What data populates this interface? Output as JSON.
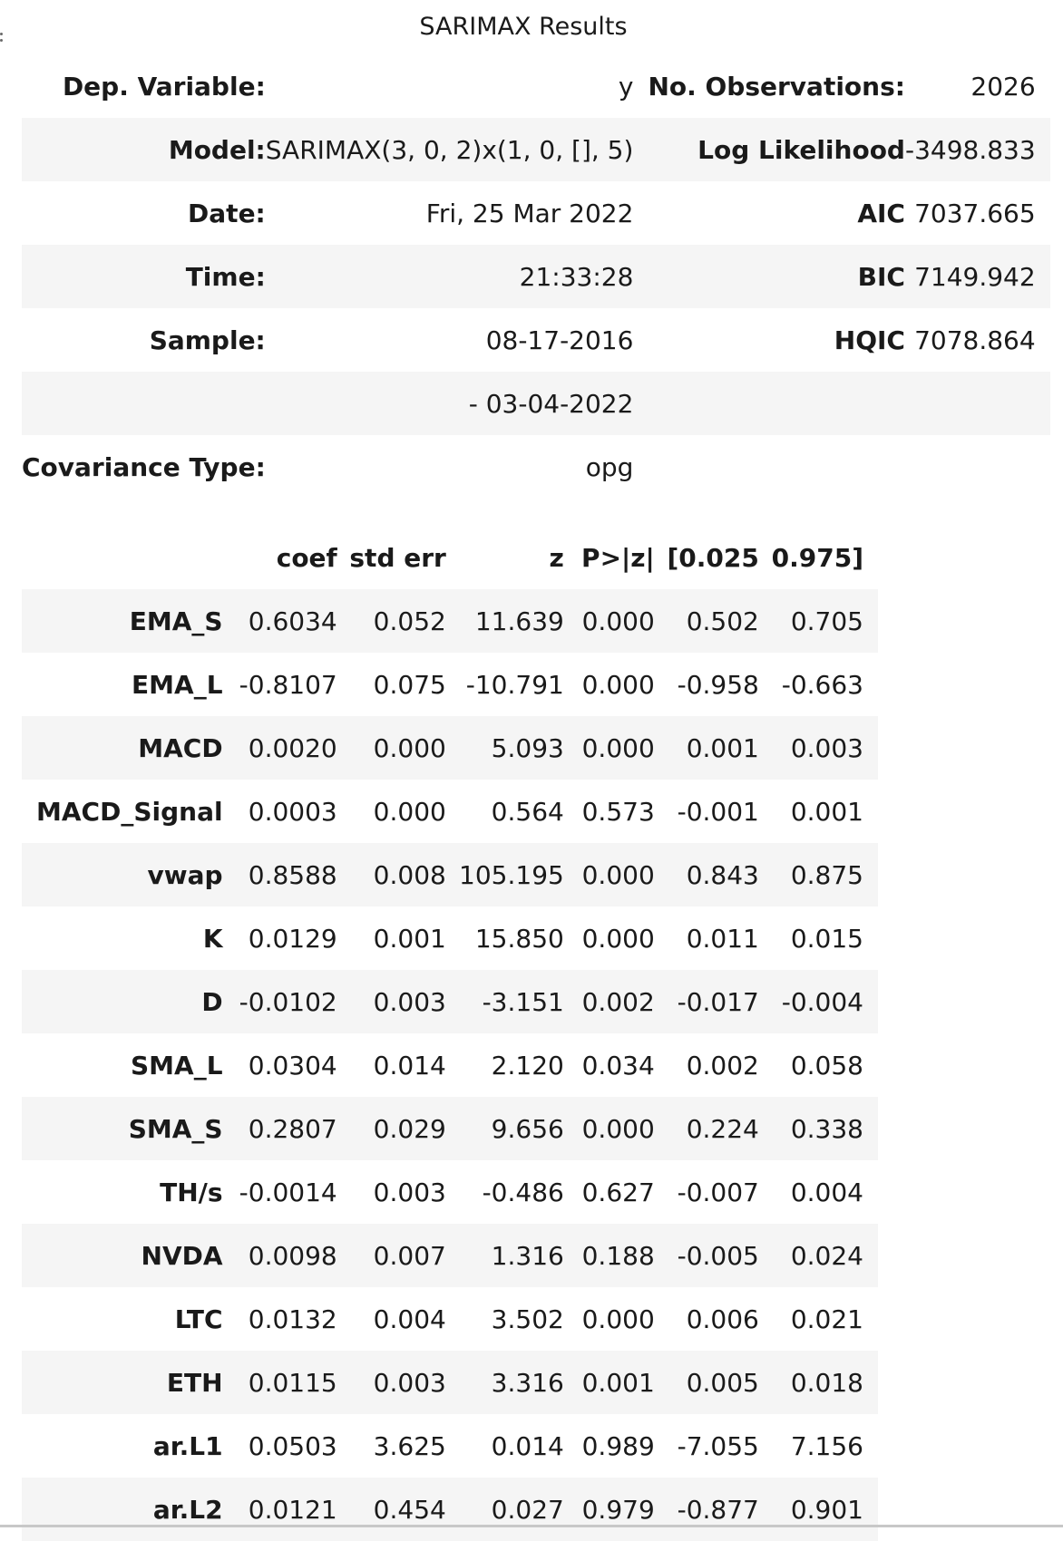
{
  "title": "SARIMAX Results",
  "summary": {
    "rows": [
      {
        "l1": "Dep. Variable:",
        "v1": "y",
        "l2": "No. Observations:",
        "v2": "2026"
      },
      {
        "l1": "Model:",
        "v1": "SARIMAX(3, 0, 2)x(1, 0, [], 5)",
        "l2": "Log Likelihood",
        "v2": "-3498.833"
      },
      {
        "l1": "Date:",
        "v1": "Fri, 25 Mar 2022",
        "l2": "AIC",
        "v2": "7037.665"
      },
      {
        "l1": "Time:",
        "v1": "21:33:28",
        "l2": "BIC",
        "v2": "7149.942"
      },
      {
        "l1": "Sample:",
        "v1": "08-17-2016",
        "l2": "HQIC",
        "v2": "7078.864"
      },
      {
        "l1": "",
        "v1": "- 03-04-2022",
        "l2": "",
        "v2": ""
      },
      {
        "l1": "Covariance Type:",
        "v1": "opg",
        "l2": "",
        "v2": ""
      }
    ]
  },
  "coefficients": {
    "headers": [
      "coef",
      "std err",
      "z",
      "P>|z|",
      "[0.025",
      "0.975]"
    ],
    "rows": [
      {
        "name": "EMA_S",
        "vals": [
          "0.6034",
          "0.052",
          "11.639",
          "0.000",
          "0.502",
          "0.705"
        ]
      },
      {
        "name": "EMA_L",
        "vals": [
          "-0.8107",
          "0.075",
          "-10.791",
          "0.000",
          "-0.958",
          "-0.663"
        ]
      },
      {
        "name": "MACD",
        "vals": [
          "0.0020",
          "0.000",
          "5.093",
          "0.000",
          "0.001",
          "0.003"
        ]
      },
      {
        "name": "MACD_Signal",
        "vals": [
          "0.0003",
          "0.000",
          "0.564",
          "0.573",
          "-0.001",
          "0.001"
        ]
      },
      {
        "name": "vwap",
        "vals": [
          "0.8588",
          "0.008",
          "105.195",
          "0.000",
          "0.843",
          "0.875"
        ]
      },
      {
        "name": "K",
        "vals": [
          "0.0129",
          "0.001",
          "15.850",
          "0.000",
          "0.011",
          "0.015"
        ]
      },
      {
        "name": "D",
        "vals": [
          "-0.0102",
          "0.003",
          "-3.151",
          "0.002",
          "-0.017",
          "-0.004"
        ]
      },
      {
        "name": "SMA_L",
        "vals": [
          "0.0304",
          "0.014",
          "2.120",
          "0.034",
          "0.002",
          "0.058"
        ]
      },
      {
        "name": "SMA_S",
        "vals": [
          "0.2807",
          "0.029",
          "9.656",
          "0.000",
          "0.224",
          "0.338"
        ]
      },
      {
        "name": "TH/s",
        "vals": [
          "-0.0014",
          "0.003",
          "-0.486",
          "0.627",
          "-0.007",
          "0.004"
        ]
      },
      {
        "name": "NVDA",
        "vals": [
          "0.0098",
          "0.007",
          "1.316",
          "0.188",
          "-0.005",
          "0.024"
        ]
      },
      {
        "name": "LTC",
        "vals": [
          "0.0132",
          "0.004",
          "3.502",
          "0.000",
          "0.006",
          "0.021"
        ]
      },
      {
        "name": "ETH",
        "vals": [
          "0.0115",
          "0.003",
          "3.316",
          "0.001",
          "0.005",
          "0.018"
        ]
      },
      {
        "name": "ar.L1",
        "vals": [
          "0.0503",
          "3.625",
          "0.014",
          "0.989",
          "-7.055",
          "7.156"
        ]
      },
      {
        "name": "ar.L2",
        "vals": [
          "0.0121",
          "0.454",
          "0.027",
          "0.979",
          "-0.877",
          "0.901"
        ]
      }
    ]
  }
}
